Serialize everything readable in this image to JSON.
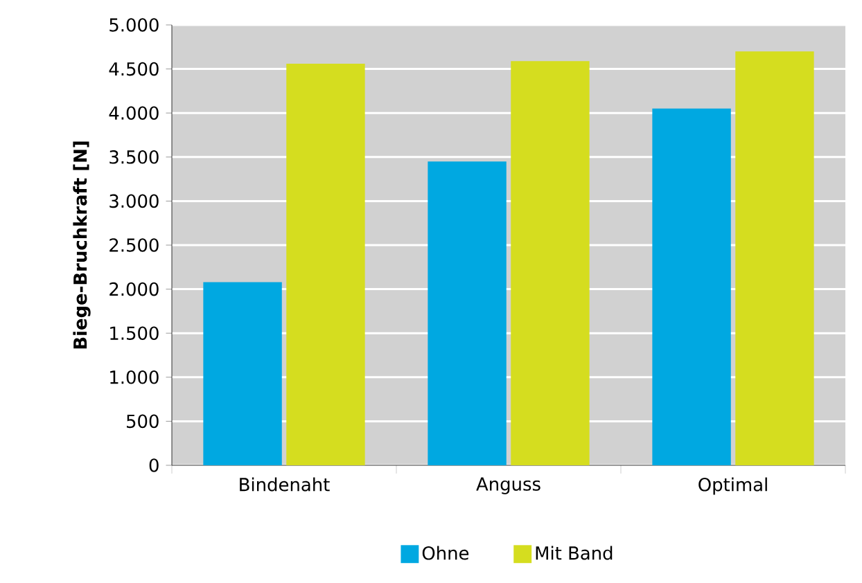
{
  "chart_data": {
    "type": "bar",
    "ylabel": "Biege-Bruchkraft [N]",
    "categories": [
      "Bindenaht",
      "Anguss",
      "Optimal"
    ],
    "series": [
      {
        "name": "Ohne",
        "color": "#00a8e1",
        "values": [
          2080,
          3450,
          4050
        ]
      },
      {
        "name": "Mit Band",
        "color": "#d5dd1f",
        "values": [
          4560,
          4590,
          4700
        ]
      }
    ],
    "ylim": [
      0,
      5000
    ],
    "yticks": [
      0,
      500,
      {
        "value": 1000,
        "label": "1.000"
      },
      {
        "value": 1500,
        "label": "1.500"
      },
      {
        "value": 2000,
        "label": "2.000"
      },
      {
        "value": 2500,
        "label": "2.500"
      },
      {
        "value": 3000,
        "label": "3.000"
      },
      {
        "value": 3500,
        "label": "3.500"
      },
      {
        "value": 4000,
        "label": "4.000"
      },
      {
        "value": 4500,
        "label": "4.500"
      },
      {
        "value": 5000,
        "label": "5.000"
      }
    ],
    "grid": "y",
    "legend": "bottom"
  }
}
